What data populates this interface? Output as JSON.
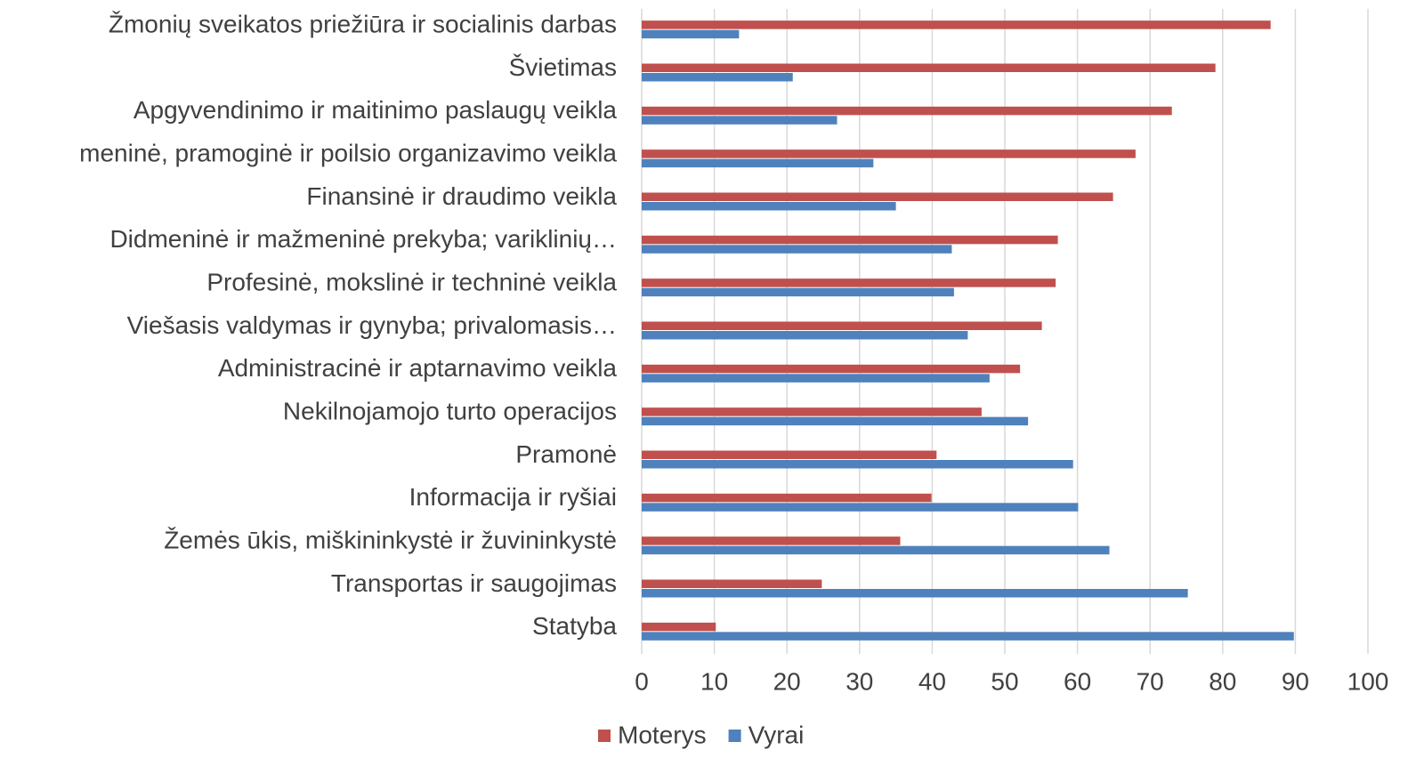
{
  "chart_data": {
    "type": "barh",
    "categories": [
      "Žmonių sveikatos priežiūra ir socialinis darbas",
      "Švietimas",
      "Apgyvendinimo ir maitinimo paslaugų veikla",
      "meninė, pramoginė ir poilsio organizavimo veikla",
      "Finansinė ir draudimo veikla",
      "Didmeninė ir mažmeninė prekyba; variklinių…",
      "Profesinė, mokslinė ir techninė veikla",
      "Viešasis valdymas ir gynyba; privalomasis…",
      "Administracinė ir aptarnavimo veikla",
      "Nekilnojamojo turto operacijos",
      "Pramonė",
      "Informacija ir ryšiai",
      "Žemės ūkis, miškininkystė ir žuvininkystė",
      "Transportas ir saugojimas",
      "Statyba"
    ],
    "series": [
      {
        "name": "Moterys",
        "color": "#c0504d",
        "values": [
          86.6,
          79.0,
          73.0,
          68.0,
          64.9,
          57.3,
          57.0,
          55.1,
          52.1,
          46.8,
          40.6,
          39.9,
          35.6,
          24.8,
          10.2
        ]
      },
      {
        "name": "Vyrai",
        "color": "#4f81bd",
        "values": [
          13.4,
          20.8,
          26.9,
          31.9,
          35.0,
          42.7,
          43.0,
          44.9,
          47.9,
          53.2,
          59.4,
          60.1,
          64.4,
          75.2,
          89.8
        ]
      }
    ],
    "xlim": [
      0,
      100
    ],
    "xticks": [
      0,
      10,
      20,
      30,
      40,
      50,
      60,
      70,
      80,
      90,
      100
    ],
    "grid": true,
    "legend": "bottom"
  }
}
